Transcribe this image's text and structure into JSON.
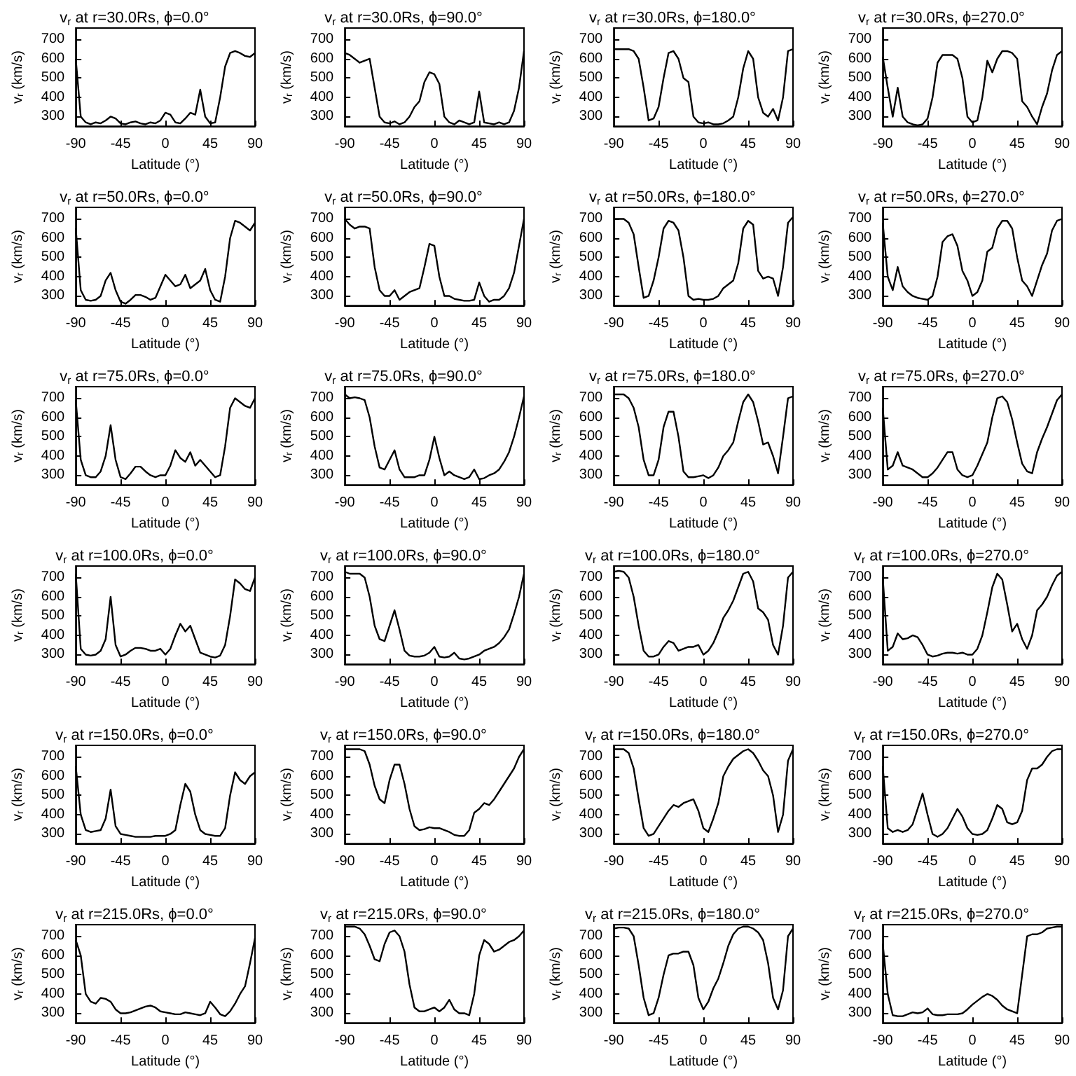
{
  "chart_data": [
    {
      "type": "line",
      "title": "v$_{r}$ at r=30.0Rs, ϕ=0.0°",
      "xlabel": "Latitude (°)",
      "ylabel": "v$_{r}$ (km/s)",
      "color": "#000000",
      "xlim": [
        -90,
        90
      ],
      "xticks": [
        -90,
        -45,
        0,
        45,
        90
      ],
      "ylim": [
        250,
        760
      ],
      "yticks": [
        300,
        400,
        500,
        600,
        700
      ],
      "x": [
        -90,
        -85,
        -80,
        -75,
        -70,
        -65,
        -60,
        -55,
        -50,
        -45,
        -40,
        -35,
        -30,
        -25,
        -20,
        -15,
        -10,
        -5,
        0,
        5,
        10,
        15,
        20,
        25,
        30,
        35,
        40,
        45,
        50,
        55,
        60,
        65,
        70,
        75,
        80,
        85,
        90
      ],
      "values": [
        600,
        300,
        270,
        260,
        270,
        265,
        280,
        300,
        290,
        265,
        260,
        270,
        275,
        265,
        260,
        270,
        265,
        280,
        320,
        310,
        270,
        265,
        290,
        320,
        310,
        440,
        300,
        265,
        270,
        400,
        560,
        630,
        640,
        630,
        615,
        610,
        630
      ]
    },
    {
      "type": "line",
      "title": "v$_{r}$ at r=30.0Rs, ϕ=90.0°",
      "xlabel": "Latitude (°)",
      "ylabel": "v$_{r}$ (km/s)",
      "color": "#000000",
      "xlim": [
        -90,
        90
      ],
      "xticks": [
        -90,
        -45,
        0,
        45,
        90
      ],
      "ylim": [
        250,
        760
      ],
      "yticks": [
        300,
        400,
        500,
        600,
        700
      ],
      "x": [
        -90,
        -85,
        -80,
        -75,
        -70,
        -65,
        -60,
        -55,
        -50,
        -45,
        -40,
        -35,
        -30,
        -25,
        -20,
        -15,
        -10,
        -5,
        0,
        5,
        10,
        15,
        20,
        25,
        30,
        35,
        40,
        45,
        50,
        55,
        60,
        65,
        70,
        75,
        80,
        85,
        90
      ],
      "values": [
        630,
        620,
        600,
        580,
        590,
        600,
        450,
        300,
        270,
        265,
        275,
        260,
        270,
        300,
        350,
        380,
        480,
        530,
        520,
        470,
        300,
        270,
        260,
        280,
        270,
        260,
        270,
        430,
        270,
        265,
        260,
        270,
        260,
        270,
        330,
        450,
        640
      ]
    },
    {
      "type": "line",
      "title": "v$_{r}$ at r=30.0Rs, ϕ=180.0°",
      "xlabel": "Latitude (°)",
      "ylabel": "v$_{r}$ (km/s)",
      "color": "#000000",
      "xlim": [
        -90,
        90
      ],
      "xticks": [
        -90,
        -45,
        0,
        45,
        90
      ],
      "ylim": [
        250,
        760
      ],
      "yticks": [
        300,
        400,
        500,
        600,
        700
      ],
      "x": [
        -90,
        -85,
        -80,
        -75,
        -70,
        -65,
        -60,
        -55,
        -50,
        -45,
        -40,
        -35,
        -30,
        -25,
        -20,
        -15,
        -10,
        -5,
        0,
        5,
        10,
        15,
        20,
        25,
        30,
        35,
        40,
        45,
        50,
        55,
        60,
        65,
        70,
        75,
        80,
        85,
        90
      ],
      "values": [
        650,
        650,
        650,
        650,
        640,
        600,
        450,
        280,
        290,
        350,
        500,
        630,
        640,
        600,
        500,
        480,
        300,
        270,
        265,
        270,
        260,
        260,
        265,
        280,
        300,
        400,
        550,
        640,
        600,
        400,
        320,
        300,
        340,
        280,
        400,
        640,
        650
      ]
    },
    {
      "type": "line",
      "title": "v$_{r}$ at r=30.0Rs, ϕ=270.0°",
      "xlabel": "Latitude (°)",
      "ylabel": "v$_{r}$ (km/s)",
      "color": "#000000",
      "xlim": [
        -90,
        90
      ],
      "xticks": [
        -90,
        -45,
        0,
        45,
        90
      ],
      "ylim": [
        250,
        760
      ],
      "yticks": [
        300,
        400,
        500,
        600,
        700
      ],
      "x": [
        -90,
        -85,
        -80,
        -75,
        -70,
        -65,
        -60,
        -55,
        -50,
        -45,
        -40,
        -35,
        -30,
        -25,
        -20,
        -15,
        -10,
        -5,
        0,
        5,
        10,
        15,
        20,
        25,
        30,
        35,
        40,
        45,
        50,
        55,
        60,
        65,
        70,
        75,
        80,
        85,
        90
      ],
      "values": [
        610,
        450,
        300,
        450,
        300,
        270,
        260,
        255,
        260,
        290,
        400,
        580,
        620,
        620,
        620,
        600,
        500,
        300,
        270,
        280,
        400,
        590,
        530,
        600,
        640,
        640,
        630,
        600,
        380,
        350,
        300,
        260,
        350,
        420,
        540,
        620,
        640
      ]
    },
    {
      "type": "line",
      "title": "v$_{r}$ at r=50.0Rs, ϕ=0.0°",
      "xlabel": "Latitude (°)",
      "ylabel": "v$_{r}$ (km/s)",
      "color": "#000000",
      "xlim": [
        -90,
        90
      ],
      "xticks": [
        -90,
        -45,
        0,
        45,
        90
      ],
      "ylim": [
        250,
        760
      ],
      "yticks": [
        300,
        400,
        500,
        600,
        700
      ],
      "x": [
        -90,
        -85,
        -80,
        -75,
        -70,
        -65,
        -60,
        -55,
        -50,
        -45,
        -40,
        -35,
        -30,
        -25,
        -20,
        -15,
        -10,
        -5,
        0,
        5,
        10,
        15,
        20,
        25,
        30,
        35,
        40,
        45,
        50,
        55,
        60,
        65,
        70,
        75,
        80,
        85,
        90
      ],
      "values": [
        650,
        330,
        280,
        275,
        280,
        300,
        380,
        420,
        330,
        270,
        260,
        280,
        305,
        305,
        295,
        280,
        290,
        350,
        410,
        380,
        350,
        360,
        410,
        340,
        360,
        380,
        440,
        330,
        280,
        270,
        400,
        600,
        690,
        680,
        660,
        640,
        680
      ]
    },
    {
      "type": "line",
      "title": "v$_{r}$ at r=50.0Rs, ϕ=90.0°",
      "xlabel": "Latitude (°)",
      "ylabel": "v$_{r}$ (km/s)",
      "color": "#000000",
      "xlim": [
        -90,
        90
      ],
      "xticks": [
        -90,
        -45,
        0,
        45,
        90
      ],
      "ylim": [
        250,
        760
      ],
      "yticks": [
        300,
        400,
        500,
        600,
        700
      ],
      "x": [
        -90,
        -85,
        -80,
        -75,
        -70,
        -65,
        -60,
        -55,
        -50,
        -45,
        -40,
        -35,
        -30,
        -25,
        -20,
        -15,
        -10,
        -5,
        0,
        5,
        10,
        15,
        20,
        25,
        30,
        35,
        40,
        45,
        50,
        55,
        60,
        65,
        70,
        75,
        80,
        85,
        90
      ],
      "values": [
        700,
        670,
        650,
        660,
        660,
        650,
        450,
        330,
        300,
        300,
        330,
        280,
        300,
        320,
        330,
        340,
        450,
        570,
        560,
        400,
        300,
        300,
        285,
        280,
        275,
        275,
        280,
        370,
        300,
        270,
        280,
        280,
        300,
        340,
        420,
        560,
        700
      ]
    },
    {
      "type": "line",
      "title": "v$_{r}$ at r=50.0Rs, ϕ=180.0°",
      "xlabel": "Latitude (°)",
      "ylabel": "v$_{r}$ (km/s)",
      "color": "#000000",
      "xlim": [
        -90,
        90
      ],
      "xticks": [
        -90,
        -45,
        0,
        45,
        90
      ],
      "ylim": [
        250,
        760
      ],
      "yticks": [
        300,
        400,
        500,
        600,
        700
      ],
      "x": [
        -90,
        -85,
        -80,
        -75,
        -70,
        -65,
        -60,
        -55,
        -50,
        -45,
        -40,
        -35,
        -30,
        -25,
        -20,
        -15,
        -10,
        -5,
        0,
        5,
        10,
        15,
        20,
        25,
        30,
        35,
        40,
        45,
        50,
        55,
        60,
        65,
        70,
        75,
        80,
        85,
        90
      ],
      "values": [
        700,
        700,
        700,
        680,
        620,
        450,
        290,
        300,
        380,
        500,
        650,
        690,
        680,
        640,
        500,
        300,
        280,
        285,
        280,
        280,
        285,
        300,
        340,
        360,
        380,
        470,
        650,
        690,
        670,
        430,
        390,
        400,
        390,
        300,
        450,
        680,
        710
      ]
    },
    {
      "type": "line",
      "title": "v$_{r}$ at r=50.0Rs, ϕ=270.0°",
      "xlabel": "Latitude (°)",
      "ylabel": "v$_{r}$ (km/s)",
      "color": "#000000",
      "xlim": [
        -90,
        90
      ],
      "xticks": [
        -90,
        -45,
        0,
        45,
        90
      ],
      "ylim": [
        250,
        760
      ],
      "yticks": [
        300,
        400,
        500,
        600,
        700
      ],
      "x": [
        -90,
        -85,
        -80,
        -75,
        -70,
        -65,
        -60,
        -55,
        -50,
        -45,
        -40,
        -35,
        -30,
        -25,
        -20,
        -15,
        -10,
        -5,
        0,
        5,
        10,
        15,
        20,
        25,
        30,
        35,
        40,
        45,
        50,
        55,
        60,
        65,
        70,
        75,
        80,
        85,
        90
      ],
      "values": [
        680,
        400,
        330,
        450,
        350,
        320,
        300,
        290,
        285,
        280,
        300,
        400,
        580,
        610,
        620,
        560,
        430,
        380,
        300,
        320,
        380,
        530,
        550,
        650,
        690,
        690,
        650,
        500,
        380,
        350,
        300,
        380,
        460,
        520,
        640,
        690,
        700
      ]
    },
    {
      "type": "line",
      "title": "v$_{r}$ at r=75.0Rs, ϕ=0.0°",
      "xlabel": "Latitude (°)",
      "ylabel": "v$_{r}$ (km/s)",
      "color": "#000000",
      "xlim": [
        -90,
        90
      ],
      "xticks": [
        -90,
        -45,
        0,
        45,
        90
      ],
      "ylim": [
        250,
        760
      ],
      "yticks": [
        300,
        400,
        500,
        600,
        700
      ],
      "x": [
        -90,
        -85,
        -80,
        -75,
        -70,
        -65,
        -60,
        -55,
        -50,
        -45,
        -40,
        -35,
        -30,
        -25,
        -20,
        -15,
        -10,
        -5,
        0,
        5,
        10,
        15,
        20,
        25,
        30,
        35,
        40,
        45,
        50,
        55,
        60,
        65,
        70,
        75,
        80,
        85,
        90
      ],
      "values": [
        690,
        380,
        300,
        290,
        290,
        320,
        400,
        560,
        380,
        290,
        280,
        310,
        345,
        345,
        320,
        300,
        290,
        300,
        300,
        350,
        430,
        390,
        370,
        420,
        350,
        380,
        350,
        320,
        290,
        300,
        450,
        650,
        700,
        680,
        660,
        650,
        700
      ]
    },
    {
      "type": "line",
      "title": "v$_{r}$ at r=75.0Rs, ϕ=90.0°",
      "xlabel": "Latitude (°)",
      "ylabel": "v$_{r}$ (km/s)",
      "color": "#000000",
      "xlim": [
        -90,
        90
      ],
      "xticks": [
        -90,
        -45,
        0,
        45,
        90
      ],
      "ylim": [
        250,
        760
      ],
      "yticks": [
        300,
        400,
        500,
        600,
        700
      ],
      "x": [
        -90,
        -85,
        -80,
        -75,
        -70,
        -65,
        -60,
        -55,
        -50,
        -45,
        -40,
        -35,
        -30,
        -25,
        -20,
        -15,
        -10,
        -5,
        0,
        5,
        10,
        15,
        20,
        25,
        30,
        35,
        40,
        45,
        50,
        55,
        60,
        65,
        70,
        75,
        80,
        85,
        90
      ],
      "values": [
        720,
        700,
        705,
        700,
        690,
        600,
        450,
        340,
        330,
        380,
        430,
        330,
        290,
        290,
        290,
        300,
        300,
        380,
        500,
        390,
        300,
        320,
        300,
        290,
        280,
        290,
        330,
        280,
        285,
        300,
        310,
        330,
        370,
        420,
        500,
        600,
        710
      ]
    },
    {
      "type": "line",
      "title": "v$_{r}$ at r=75.0Rs, ϕ=180.0°",
      "xlabel": "Latitude (°)",
      "ylabel": "v$_{r}$ (km/s)",
      "color": "#000000",
      "xlim": [
        -90,
        90
      ],
      "xticks": [
        -90,
        -45,
        0,
        45,
        90
      ],
      "ylim": [
        250,
        760
      ],
      "yticks": [
        300,
        400,
        500,
        600,
        700
      ],
      "x": [
        -90,
        -85,
        -80,
        -75,
        -70,
        -65,
        -60,
        -55,
        -50,
        -45,
        -40,
        -35,
        -30,
        -25,
        -20,
        -15,
        -10,
        -5,
        0,
        5,
        10,
        15,
        20,
        25,
        30,
        35,
        40,
        45,
        50,
        55,
        60,
        65,
        70,
        75,
        80,
        85,
        90
      ],
      "values": [
        720,
        720,
        720,
        700,
        650,
        550,
        380,
        300,
        300,
        380,
        550,
        630,
        630,
        500,
        320,
        290,
        290,
        295,
        300,
        285,
        300,
        340,
        400,
        430,
        470,
        580,
        680,
        720,
        680,
        580,
        460,
        470,
        400,
        310,
        500,
        700,
        710
      ]
    },
    {
      "type": "line",
      "title": "v$_{r}$ at r=75.0Rs, ϕ=270.0°",
      "xlabel": "Latitude (°)",
      "ylabel": "v$_{r}$ (km/s)",
      "color": "#000000",
      "xlim": [
        -90,
        90
      ],
      "xticks": [
        -90,
        -45,
        0,
        45,
        90
      ],
      "ylim": [
        250,
        760
      ],
      "yticks": [
        300,
        400,
        500,
        600,
        700
      ],
      "x": [
        -90,
        -85,
        -80,
        -75,
        -70,
        -65,
        -60,
        -55,
        -50,
        -45,
        -40,
        -35,
        -30,
        -25,
        -20,
        -15,
        -10,
        -5,
        0,
        5,
        10,
        15,
        20,
        25,
        30,
        35,
        40,
        45,
        50,
        55,
        60,
        65,
        70,
        75,
        80,
        85,
        90
      ],
      "values": [
        650,
        330,
        350,
        420,
        350,
        340,
        330,
        310,
        290,
        290,
        310,
        340,
        380,
        420,
        420,
        330,
        300,
        290,
        300,
        350,
        410,
        470,
        600,
        700,
        710,
        680,
        590,
        470,
        360,
        320,
        310,
        420,
        490,
        550,
        620,
        690,
        720
      ]
    },
    {
      "type": "line",
      "title": "v$_{r}$ at r=100.0Rs, ϕ=0.0°",
      "xlabel": "Latitude (°)",
      "ylabel": "v$_{r}$ (km/s)",
      "color": "#000000",
      "xlim": [
        -90,
        90
      ],
      "xticks": [
        -90,
        -45,
        0,
        45,
        90
      ],
      "ylim": [
        250,
        760
      ],
      "yticks": [
        300,
        400,
        500,
        600,
        700
      ],
      "x": [
        -90,
        -85,
        -80,
        -75,
        -70,
        -65,
        -60,
        -55,
        -50,
        -45,
        -40,
        -35,
        -30,
        -25,
        -20,
        -15,
        -10,
        -5,
        0,
        5,
        10,
        15,
        20,
        25,
        30,
        35,
        40,
        45,
        50,
        55,
        60,
        65,
        70,
        75,
        80,
        85,
        90
      ],
      "values": [
        720,
        330,
        300,
        295,
        300,
        320,
        380,
        600,
        350,
        290,
        300,
        320,
        335,
        335,
        330,
        320,
        320,
        330,
        300,
        330,
        400,
        460,
        420,
        450,
        380,
        310,
        300,
        290,
        285,
        295,
        350,
        500,
        690,
        670,
        640,
        630,
        700
      ]
    },
    {
      "type": "line",
      "title": "v$_{r}$ at r=100.0Rs, ϕ=90.0°",
      "xlabel": "Latitude (°)",
      "ylabel": "v$_{r}$ (km/s)",
      "color": "#000000",
      "xlim": [
        -90,
        90
      ],
      "xticks": [
        -90,
        -45,
        0,
        45,
        90
      ],
      "ylim": [
        250,
        760
      ],
      "yticks": [
        300,
        400,
        500,
        600,
        700
      ],
      "x": [
        -90,
        -85,
        -80,
        -75,
        -70,
        -65,
        -60,
        -55,
        -50,
        -45,
        -40,
        -35,
        -30,
        -25,
        -20,
        -15,
        -10,
        -5,
        0,
        5,
        10,
        15,
        20,
        25,
        30,
        35,
        40,
        45,
        50,
        55,
        60,
        65,
        70,
        75,
        80,
        85,
        90
      ],
      "values": [
        730,
        720,
        720,
        720,
        700,
        600,
        450,
        380,
        370,
        450,
        530,
        430,
        320,
        295,
        290,
        290,
        295,
        310,
        340,
        290,
        285,
        290,
        310,
        280,
        275,
        280,
        290,
        300,
        320,
        330,
        340,
        360,
        390,
        430,
        510,
        600,
        720
      ]
    },
    {
      "type": "line",
      "title": "v$_{r}$ at r=100.0Rs, ϕ=180.0°",
      "xlabel": "Latitude (°)",
      "ylabel": "v$_{r}$ (km/s)",
      "color": "#000000",
      "xlim": [
        -90,
        90
      ],
      "xticks": [
        -90,
        -45,
        0,
        45,
        90
      ],
      "ylim": [
        250,
        760
      ],
      "yticks": [
        300,
        400,
        500,
        600,
        700
      ],
      "x": [
        -90,
        -85,
        -80,
        -75,
        -70,
        -65,
        -60,
        -55,
        -50,
        -45,
        -40,
        -35,
        -30,
        -25,
        -20,
        -15,
        -10,
        -5,
        0,
        5,
        10,
        15,
        20,
        25,
        30,
        35,
        40,
        45,
        50,
        55,
        60,
        65,
        70,
        75,
        80,
        85,
        90
      ],
      "values": [
        730,
        735,
        730,
        700,
        600,
        450,
        320,
        290,
        290,
        300,
        340,
        370,
        360,
        320,
        330,
        340,
        340,
        350,
        300,
        320,
        360,
        420,
        490,
        530,
        580,
        650,
        720,
        730,
        680,
        540,
        520,
        480,
        350,
        300,
        450,
        700,
        730
      ]
    },
    {
      "type": "line",
      "title": "v$_{r}$ at r=100.0Rs, ϕ=270.0°",
      "xlabel": "Latitude (°)",
      "ylabel": "v$_{r}$ (km/s)",
      "color": "#000000",
      "xlim": [
        -90,
        90
      ],
      "xticks": [
        -90,
        -45,
        0,
        45,
        90
      ],
      "ylim": [
        250,
        760
      ],
      "yticks": [
        300,
        400,
        500,
        600,
        700
      ],
      "x": [
        -90,
        -85,
        -80,
        -75,
        -70,
        -65,
        -60,
        -55,
        -50,
        -45,
        -40,
        -35,
        -30,
        -25,
        -20,
        -15,
        -10,
        -5,
        0,
        5,
        10,
        15,
        20,
        25,
        30,
        35,
        40,
        45,
        50,
        55,
        60,
        65,
        70,
        75,
        80,
        85,
        90
      ],
      "values": [
        700,
        320,
        340,
        410,
        380,
        385,
        400,
        390,
        350,
        300,
        290,
        295,
        305,
        310,
        310,
        305,
        310,
        300,
        300,
        330,
        400,
        520,
        650,
        720,
        690,
        560,
        420,
        460,
        380,
        330,
        400,
        530,
        560,
        600,
        660,
        710,
        730
      ]
    },
    {
      "type": "line",
      "title": "v$_{r}$ at r=150.0Rs, ϕ=0.0°",
      "xlabel": "Latitude (°)",
      "ylabel": "v$_{r}$ (km/s)",
      "color": "#000000",
      "xlim": [
        -90,
        90
      ],
      "xticks": [
        -90,
        -45,
        0,
        45,
        90
      ],
      "ylim": [
        250,
        760
      ],
      "yticks": [
        300,
        400,
        500,
        600,
        700
      ],
      "x": [
        -90,
        -85,
        -80,
        -75,
        -70,
        -65,
        -60,
        -55,
        -50,
        -45,
        -40,
        -35,
        -30,
        -25,
        -20,
        -15,
        -10,
        -5,
        0,
        5,
        10,
        15,
        20,
        25,
        30,
        35,
        40,
        45,
        50,
        55,
        60,
        65,
        70,
        75,
        80,
        85,
        90
      ],
      "values": [
        650,
        400,
        320,
        310,
        315,
        320,
        380,
        530,
        340,
        300,
        295,
        290,
        285,
        285,
        285,
        285,
        290,
        290,
        290,
        300,
        320,
        450,
        560,
        520,
        400,
        320,
        300,
        295,
        290,
        290,
        330,
        500,
        620,
        580,
        560,
        600,
        620
      ]
    },
    {
      "type": "line",
      "title": "v$_{r}$ at r=150.0Rs, ϕ=90.0°",
      "xlabel": "Latitude (°)",
      "ylabel": "v$_{r}$ (km/s)",
      "color": "#000000",
      "xlim": [
        -90,
        90
      ],
      "xticks": [
        -90,
        -45,
        0,
        45,
        90
      ],
      "ylim": [
        250,
        760
      ],
      "yticks": [
        300,
        400,
        500,
        600,
        700
      ],
      "x": [
        -90,
        -85,
        -80,
        -75,
        -70,
        -65,
        -60,
        -55,
        -50,
        -45,
        -40,
        -35,
        -30,
        -25,
        -20,
        -15,
        -10,
        -5,
        0,
        5,
        10,
        15,
        20,
        25,
        30,
        35,
        40,
        45,
        50,
        55,
        60,
        65,
        70,
        75,
        80,
        85,
        90
      ],
      "values": [
        740,
        740,
        740,
        740,
        730,
        660,
        550,
        480,
        460,
        580,
        660,
        660,
        560,
        430,
        340,
        320,
        325,
        335,
        330,
        330,
        320,
        310,
        295,
        290,
        290,
        320,
        410,
        430,
        460,
        450,
        480,
        520,
        560,
        600,
        640,
        700,
        740
      ]
    },
    {
      "type": "line",
      "title": "v$_{r}$ at r=150.0Rs, ϕ=180.0°",
      "xlabel": "Latitude (°)",
      "ylabel": "v$_{r}$ (km/s)",
      "color": "#000000",
      "xlim": [
        -90,
        90
      ],
      "xticks": [
        -90,
        -45,
        0,
        45,
        90
      ],
      "ylim": [
        250,
        760
      ],
      "yticks": [
        300,
        400,
        500,
        600,
        700
      ],
      "x": [
        -90,
        -85,
        -80,
        -75,
        -70,
        -65,
        -60,
        -55,
        -50,
        -45,
        -40,
        -35,
        -30,
        -25,
        -20,
        -15,
        -10,
        -5,
        0,
        5,
        10,
        15,
        20,
        25,
        30,
        35,
        40,
        45,
        50,
        55,
        60,
        65,
        70,
        75,
        80,
        85,
        90
      ],
      "values": [
        740,
        740,
        740,
        720,
        640,
        480,
        330,
        290,
        300,
        340,
        380,
        420,
        450,
        440,
        460,
        470,
        480,
        420,
        330,
        310,
        380,
        460,
        600,
        650,
        690,
        710,
        730,
        740,
        720,
        680,
        630,
        600,
        500,
        310,
        400,
        680,
        740
      ]
    },
    {
      "type": "line",
      "title": "v$_{r}$ at r=150.0Rs, ϕ=270.0°",
      "xlabel": "Latitude (°)",
      "ylabel": "v$_{r}$ (km/s)",
      "color": "#000000",
      "xlim": [
        -90,
        90
      ],
      "xticks": [
        -90,
        -45,
        0,
        45,
        90
      ],
      "ylim": [
        250,
        760
      ],
      "yticks": [
        300,
        400,
        500,
        600,
        700
      ],
      "x": [
        -90,
        -85,
        -80,
        -75,
        -70,
        -65,
        -60,
        -55,
        -50,
        -45,
        -40,
        -35,
        -30,
        -25,
        -20,
        -15,
        -10,
        -5,
        0,
        5,
        10,
        15,
        20,
        25,
        30,
        35,
        40,
        45,
        50,
        55,
        60,
        65,
        70,
        75,
        80,
        85,
        90
      ],
      "values": [
        650,
        330,
        310,
        320,
        310,
        320,
        350,
        430,
        510,
        400,
        300,
        285,
        300,
        330,
        380,
        430,
        390,
        330,
        300,
        295,
        300,
        320,
        380,
        450,
        430,
        360,
        350,
        360,
        420,
        580,
        640,
        640,
        660,
        700,
        730,
        740,
        740
      ]
    },
    {
      "type": "line",
      "title": "v$_{r}$ at r=215.0Rs, ϕ=0.0°",
      "xlabel": "Latitude (°)",
      "ylabel": "v$_{r}$ (km/s)",
      "color": "#000000",
      "xlim": [
        -90,
        90
      ],
      "xticks": [
        -90,
        -45,
        0,
        45,
        90
      ],
      "ylim": [
        250,
        760
      ],
      "yticks": [
        300,
        400,
        500,
        600,
        700
      ],
      "x": [
        -90,
        -85,
        -80,
        -75,
        -70,
        -65,
        -60,
        -55,
        -50,
        -45,
        -40,
        -35,
        -30,
        -25,
        -20,
        -15,
        -10,
        -5,
        0,
        5,
        10,
        15,
        20,
        25,
        30,
        35,
        40,
        45,
        50,
        55,
        60,
        65,
        70,
        75,
        80,
        85,
        90
      ],
      "values": [
        680,
        600,
        400,
        360,
        350,
        380,
        375,
        360,
        320,
        300,
        300,
        305,
        315,
        325,
        335,
        340,
        330,
        310,
        305,
        300,
        295,
        295,
        305,
        300,
        295,
        290,
        300,
        360,
        330,
        295,
        285,
        310,
        350,
        400,
        440,
        560,
        690
      ]
    },
    {
      "type": "line",
      "title": "v$_{r}$ at r=215.0Rs, ϕ=90.0°",
      "xlabel": "Latitude (°)",
      "ylabel": "v$_{r}$ (km/s)",
      "color": "#000000",
      "xlim": [
        -90,
        90
      ],
      "xticks": [
        -90,
        -45,
        0,
        45,
        90
      ],
      "ylim": [
        250,
        760
      ],
      "yticks": [
        300,
        400,
        500,
        600,
        700
      ],
      "x": [
        -90,
        -85,
        -80,
        -75,
        -70,
        -65,
        -60,
        -55,
        -50,
        -45,
        -40,
        -35,
        -30,
        -25,
        -20,
        -15,
        -10,
        -5,
        0,
        5,
        10,
        15,
        20,
        25,
        30,
        35,
        40,
        45,
        50,
        55,
        60,
        65,
        70,
        75,
        80,
        85,
        90
      ],
      "values": [
        750,
        750,
        750,
        740,
        710,
        650,
        580,
        570,
        660,
        720,
        730,
        700,
        620,
        450,
        330,
        310,
        310,
        320,
        330,
        310,
        330,
        370,
        320,
        300,
        300,
        290,
        400,
        600,
        680,
        660,
        620,
        630,
        650,
        670,
        680,
        700,
        730
      ]
    },
    {
      "type": "line",
      "title": "v$_{r}$ at r=215.0Rs, ϕ=180.0°",
      "xlabel": "Latitude (°)",
      "ylabel": "v$_{r}$ (km/s)",
      "color": "#000000",
      "xlim": [
        -90,
        90
      ],
      "xticks": [
        -90,
        -45,
        0,
        45,
        90
      ],
      "ylim": [
        250,
        760
      ],
      "yticks": [
        300,
        400,
        500,
        600,
        700
      ],
      "x": [
        -90,
        -85,
        -80,
        -75,
        -70,
        -65,
        -60,
        -55,
        -50,
        -45,
        -40,
        -35,
        -30,
        -25,
        -20,
        -15,
        -10,
        -5,
        0,
        5,
        10,
        15,
        20,
        25,
        30,
        35,
        40,
        45,
        50,
        55,
        60,
        65,
        70,
        75,
        80,
        85,
        90
      ],
      "values": [
        740,
        745,
        745,
        740,
        700,
        550,
        380,
        290,
        300,
        380,
        500,
        600,
        610,
        610,
        620,
        620,
        550,
        380,
        320,
        360,
        430,
        480,
        560,
        650,
        710,
        740,
        750,
        750,
        740,
        720,
        680,
        560,
        380,
        320,
        420,
        700,
        740
      ]
    },
    {
      "type": "line",
      "title": "v$_{r}$ at r=215.0Rs, ϕ=270.0°",
      "xlabel": "Latitude (°)",
      "ylabel": "v$_{r}$ (km/s)",
      "color": "#000000",
      "xlim": [
        -90,
        90
      ],
      "xticks": [
        -90,
        -45,
        0,
        45,
        90
      ],
      "ylim": [
        250,
        760
      ],
      "yticks": [
        300,
        400,
        500,
        600,
        700
      ],
      "x": [
        -90,
        -85,
        -80,
        -75,
        -70,
        -65,
        -60,
        -55,
        -50,
        -45,
        -40,
        -35,
        -30,
        -25,
        -20,
        -15,
        -10,
        -5,
        0,
        5,
        10,
        15,
        20,
        25,
        30,
        35,
        40,
        45,
        50,
        55,
        60,
        65,
        70,
        75,
        80,
        85,
        90
      ],
      "values": [
        660,
        400,
        290,
        285,
        285,
        295,
        305,
        300,
        305,
        325,
        295,
        290,
        290,
        295,
        295,
        295,
        300,
        320,
        345,
        365,
        385,
        400,
        390,
        370,
        340,
        320,
        310,
        300,
        500,
        700,
        710,
        710,
        720,
        740,
        745,
        750,
        750
      ]
    }
  ]
}
